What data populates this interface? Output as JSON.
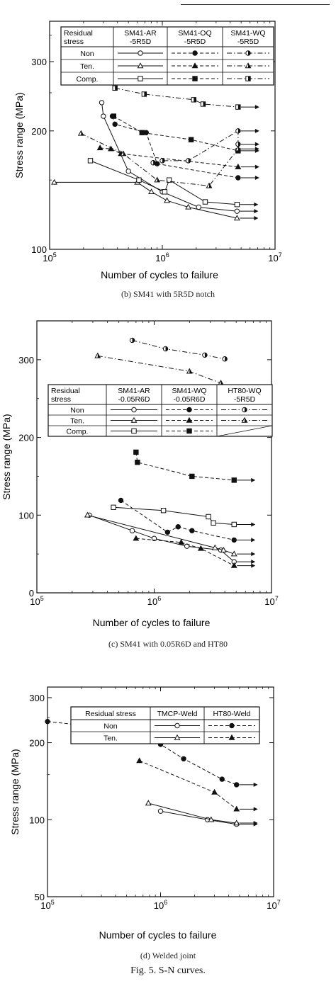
{
  "figure_caption": "Fig. 5.  S-N curves.",
  "panels": [
    {
      "caption": "(b)  SM41 with 5R5D notch"
    },
    {
      "caption": "(c)  SM41 with 0.05R6D and HT80"
    },
    {
      "caption": "(d)  Welded joint"
    }
  ],
  "chart_data": [
    {
      "type": "scatter",
      "caption": "(b)  SM41 with 5R5D notch",
      "xlabel": "Number of cycles to failure",
      "ylabel": "Stress range (MPa)",
      "x_scale": "log",
      "y_scale": "log",
      "xlim": [
        100000,
        10000000
      ],
      "ylim": [
        100,
        380
      ],
      "xticks": [
        {
          "v": 100000,
          "b": "10",
          "e": "5"
        },
        {
          "v": 1000000,
          "b": "10",
          "e": "6"
        },
        {
          "v": 10000000,
          "b": "10",
          "e": "7"
        }
      ],
      "yticks": [
        100,
        200,
        300
      ],
      "legend": {
        "header": [
          "Residual stress",
          "SM41-AR -5R5D",
          "SM41-OQ -5R5D",
          "SM41-WQ -5R5D"
        ],
        "rows": [
          "Non",
          "Ten.",
          "Comp."
        ]
      },
      "series": [
        {
          "group": "SM41-AR",
          "stress": "Non",
          "marker": "circle-open",
          "line": "solid",
          "points": [
            [
              290000,
              236
            ],
            [
              300000,
              218
            ],
            [
              500000,
              158
            ],
            [
              1000000,
              140
            ],
            [
              2100000,
              128
            ],
            [
              4600000,
              125
            ]
          ]
        },
        {
          "group": "SM41-AR",
          "stress": "Ten.",
          "marker": "triangle-open",
          "line": "solid",
          "points": [
            [
              110000,
              148
            ],
            [
              600000,
              148
            ],
            [
              800000,
              140
            ],
            [
              1100000,
              133
            ],
            [
              1700000,
              128
            ],
            [
              4600000,
              120
            ]
          ]
        },
        {
          "group": "SM41-AR",
          "stress": "Comp.",
          "marker": "square-open",
          "line": "solid",
          "points": [
            [
              230000,
              168
            ],
            [
              620000,
              150
            ],
            [
              1050000,
              140
            ],
            [
              1150000,
              150
            ],
            [
              2400000,
              132
            ],
            [
              4600000,
              130
            ]
          ]
        },
        {
          "group": "SM41-OQ",
          "stress": "Non",
          "marker": "circle-filled",
          "line": "dashed",
          "points": [
            [
              360000,
              218
            ],
            [
              380000,
              208
            ],
            [
              720000,
              198
            ],
            [
              900000,
              165
            ],
            [
              4700000,
              152
            ]
          ]
        },
        {
          "group": "SM41-OQ",
          "stress": "Ten.",
          "marker": "triangle-filled",
          "line": "dashed",
          "points": [
            [
              280000,
              181
            ],
            [
              350000,
              180
            ],
            [
              430000,
              175
            ],
            [
              4700000,
              162
            ]
          ]
        },
        {
          "group": "SM41-OQ",
          "stress": "Comp.",
          "marker": "square-filled",
          "line": "dashed",
          "points": [
            [
              370000,
              218
            ],
            [
              660000,
              198
            ],
            [
              1800000,
              190
            ],
            [
              4700000,
              178
            ]
          ]
        },
        {
          "group": "SM41-WQ",
          "stress": "Non",
          "marker": "circle-half",
          "line": "dashdot",
          "points": [
            [
              830000,
              166
            ],
            [
              1000000,
              168
            ],
            [
              1700000,
              168
            ],
            [
              4700000,
              200
            ],
            [
              4700000,
              185
            ]
          ]
        },
        {
          "group": "SM41-WQ",
          "stress": "Ten.",
          "marker": "triangle-half",
          "line": "dashdot",
          "points": [
            [
              190000,
              197
            ],
            [
              450000,
              175
            ],
            [
              900000,
              150
            ],
            [
              2600000,
              145
            ],
            [
              4700000,
              180
            ]
          ]
        },
        {
          "group": "SM41-WQ",
          "stress": "Comp.",
          "marker": "square-half",
          "line": "dashdot",
          "points": [
            [
              380000,
              257
            ],
            [
              690000,
              248
            ],
            [
              1900000,
              240
            ],
            [
              2300000,
              234
            ],
            [
              4700000,
              230
            ]
          ]
        }
      ]
    },
    {
      "type": "scatter",
      "caption": "(c)  SM41 with 0.05R6D and HT80",
      "xlabel": "Number of cycles to failure",
      "ylabel": "Stress range (MPa)",
      "x_scale": "log",
      "y_scale": "linear",
      "xlim": [
        100000,
        10000000
      ],
      "ylim": [
        0,
        350
      ],
      "xticks": [
        {
          "v": 100000,
          "b": "10",
          "e": "5"
        },
        {
          "v": 1000000,
          "b": "10",
          "e": "6"
        },
        {
          "v": 10000000,
          "b": "10",
          "e": "7"
        }
      ],
      "yticks": [
        0,
        100,
        200,
        300
      ],
      "legend": {
        "header": [
          "Residual stress",
          "SM41-AR -0.05R6D",
          "SM41-WQ -0.05R6D",
          "HT80-WQ -5R5D"
        ],
        "rows": [
          "Non",
          "Ten.",
          "Comp."
        ]
      },
      "series": [
        {
          "group": "SM41-AR",
          "stress": "Non",
          "marker": "circle-open",
          "line": "solid",
          "points": [
            [
              280000,
              100
            ],
            [
              650000,
              80
            ],
            [
              1000000,
              70
            ],
            [
              1900000,
              60
            ],
            [
              3700000,
              55
            ],
            [
              4800000,
              40
            ]
          ]
        },
        {
          "group": "SM41-AR",
          "stress": "Ten.",
          "marker": "triangle-open",
          "line": "solid",
          "points": [
            [
              270000,
              100
            ],
            [
              3300000,
              58
            ],
            [
              3900000,
              55
            ],
            [
              4800000,
              50
            ]
          ]
        },
        {
          "group": "SM41-AR",
          "stress": "Comp.",
          "marker": "square-open",
          "line": "solid",
          "points": [
            [
              450000,
              110
            ],
            [
              1200000,
              106
            ],
            [
              2900000,
              98
            ],
            [
              3200000,
              90
            ],
            [
              4800000,
              88
            ]
          ]
        },
        {
          "group": "SM41-WQ",
          "stress": "Non",
          "marker": "circle-filled",
          "line": "dashed",
          "points": [
            [
              520000,
              119
            ],
            [
              1300000,
              78
            ],
            [
              1600000,
              85
            ],
            [
              2100000,
              80
            ],
            [
              4800000,
              68
            ]
          ]
        },
        {
          "group": "SM41-WQ",
          "stress": "Ten.",
          "marker": "triangle-filled",
          "line": "dashed",
          "points": [
            [
              700000,
              70
            ],
            [
              1700000,
              65
            ],
            [
              2500000,
              57
            ],
            [
              4800000,
              35
            ]
          ]
        },
        {
          "group": "SM41-WQ",
          "stress": "Comp.",
          "marker": "square-filled",
          "line": "dashed",
          "points": [
            [
              700000,
              181
            ],
            [
              720000,
              168
            ],
            [
              2100000,
              150
            ],
            [
              4800000,
              145
            ]
          ]
        },
        {
          "group": "HT80-WQ",
          "stress": "Non",
          "marker": "circle-half",
          "line": "dashdot",
          "points": [
            [
              650000,
              325
            ],
            [
              1250000,
              314
            ],
            [
              2700000,
              306
            ],
            [
              4000000,
              301
            ]
          ]
        },
        {
          "group": "HT80-WQ",
          "stress": "Ten.",
          "marker": "triangle-half",
          "line": "dashdot",
          "points": [
            [
              330000,
              305
            ],
            [
              2000000,
              285
            ],
            [
              3700000,
              270
            ]
          ]
        }
      ]
    },
    {
      "type": "scatter",
      "caption": "(d)  Welded joint",
      "xlabel": "Number of cycles to failure",
      "ylabel": "Stress range (MPa)",
      "x_scale": "log",
      "y_scale": "log",
      "xlim": [
        100000,
        10000000
      ],
      "ylim": [
        50,
        330
      ],
      "xticks": [
        {
          "v": 100000,
          "b": "10",
          "e": "5"
        },
        {
          "v": 1000000,
          "b": "10",
          "e": "6"
        },
        {
          "v": 10000000,
          "b": "10",
          "e": "7"
        }
      ],
      "yticks": [
        50,
        100,
        200,
        300
      ],
      "legend": {
        "header": [
          "Residual stress",
          "TMCP-Weld",
          "HT80-Weld"
        ],
        "rows": [
          "Non",
          "Ten."
        ]
      },
      "series": [
        {
          "group": "TMCP-Weld",
          "stress": "Non",
          "marker": "circle-open",
          "line": "solid",
          "points": [
            [
              1000000,
              108
            ],
            [
              2600000,
              100
            ],
            [
              4700000,
              96
            ]
          ]
        },
        {
          "group": "TMCP-Weld",
          "stress": "Ten.",
          "marker": "triangle-open",
          "line": "solid",
          "points": [
            [
              780000,
              116
            ],
            [
              2800000,
              100
            ],
            [
              4700000,
              97
            ]
          ]
        },
        {
          "group": "HT80-Weld",
          "stress": "Non",
          "marker": "circle-filled",
          "line": "dashed",
          "points": [
            [
              100000,
              242
            ],
            [
              460000,
              225
            ],
            [
              1000000,
              197
            ],
            [
              1600000,
              173
            ],
            [
              3500000,
              144
            ],
            [
              4700000,
              137
            ]
          ]
        },
        {
          "group": "HT80-Weld",
          "stress": "Ten.",
          "marker": "triangle-filled",
          "line": "dashed",
          "points": [
            [
              650000,
              170
            ],
            [
              3000000,
              128
            ],
            [
              4700000,
              110
            ]
          ]
        }
      ]
    }
  ]
}
